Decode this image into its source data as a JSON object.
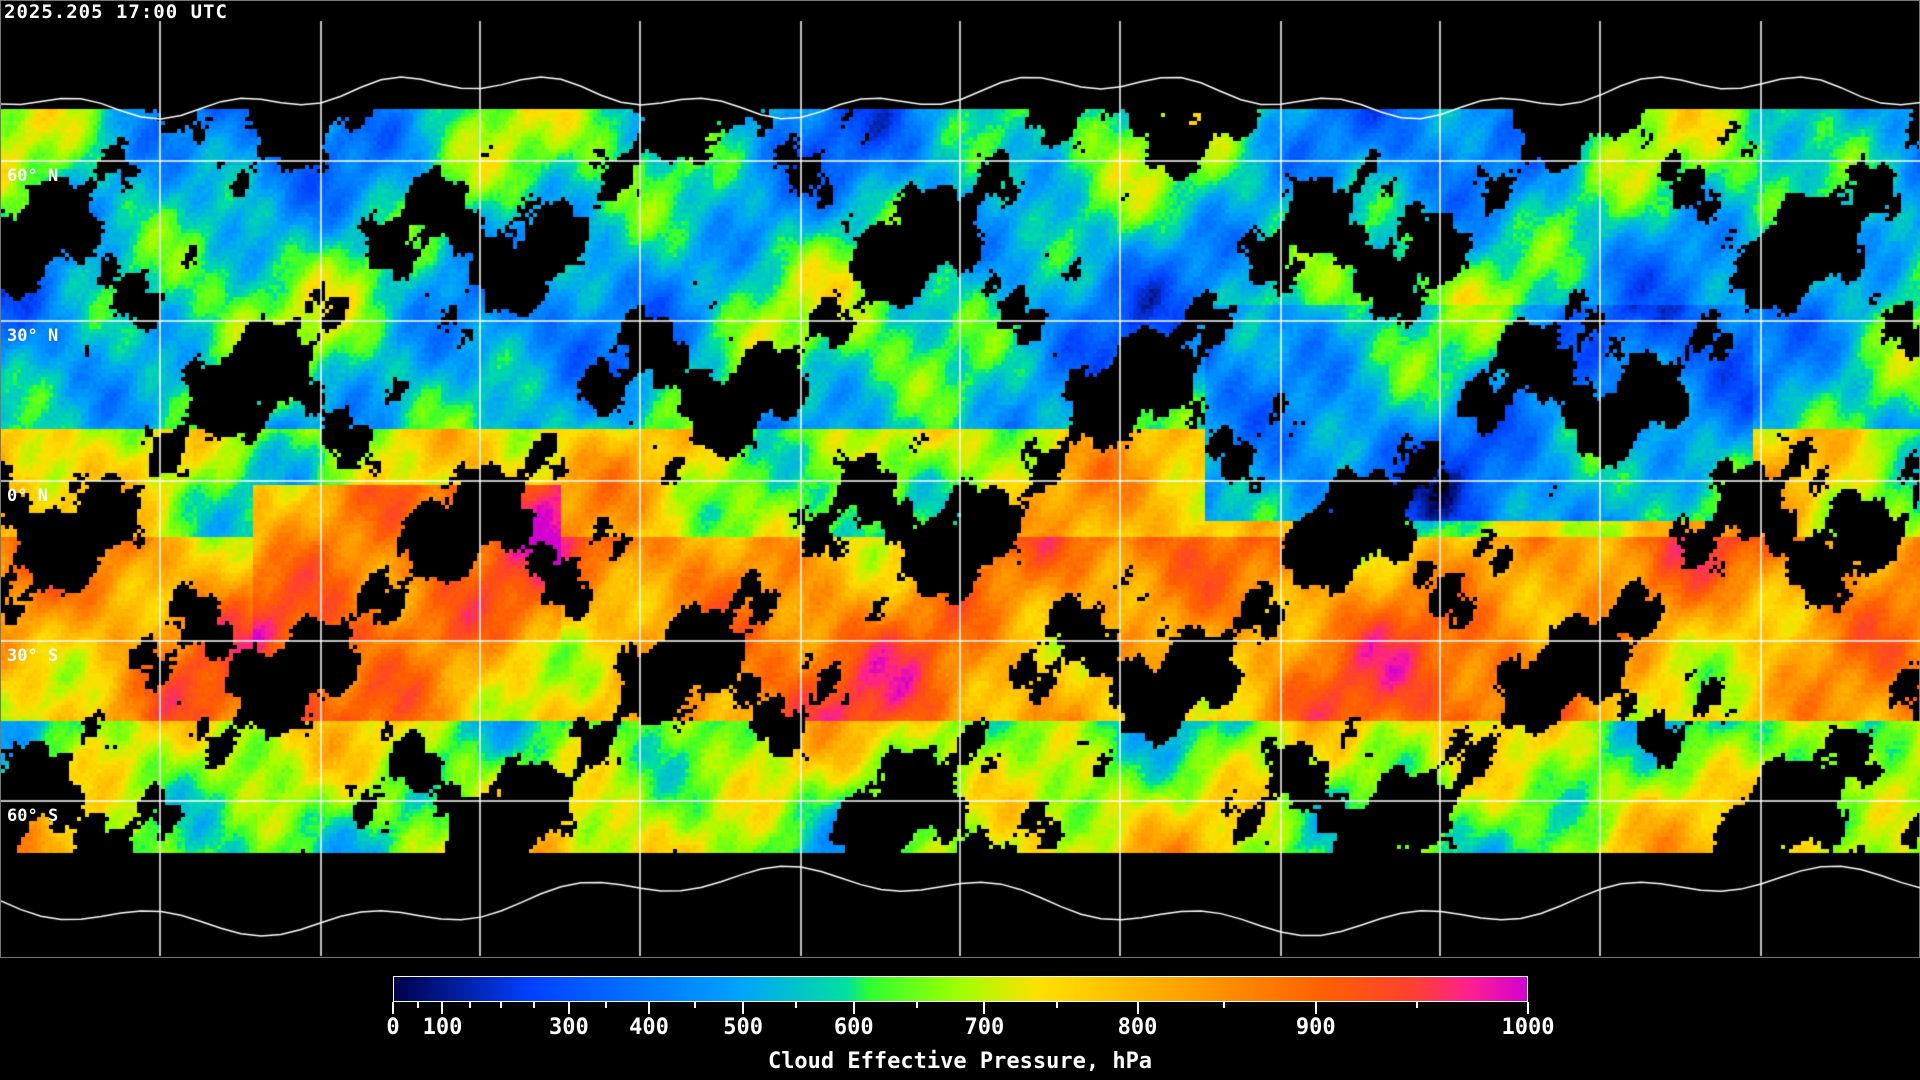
{
  "timestamp": "2025.205 17:00 UTC",
  "map": {
    "projection": "equirectangular",
    "latitude_labels": [
      "60° N",
      "30° N",
      "0° N",
      "30° S",
      "60° S"
    ],
    "gridline_color": "#ffffff",
    "coastline_color": "#ffffff",
    "missing_data_color": "#000000"
  },
  "colorbar": {
    "title": "Cloud Effective Pressure, hPa",
    "range": [
      0,
      1000
    ],
    "major_ticks": [
      "0",
      "100",
      "300",
      "400",
      "500",
      "600",
      "700",
      "800",
      "900",
      "1000"
    ],
    "colors": [
      "#00004a",
      "#0040ff",
      "#00a0ff",
      "#00e0a0",
      "#30ff30",
      "#a0ff00",
      "#ffe000",
      "#ffa000",
      "#ff6000",
      "#ff4030",
      "#ff2090",
      "#d000d0"
    ]
  }
}
